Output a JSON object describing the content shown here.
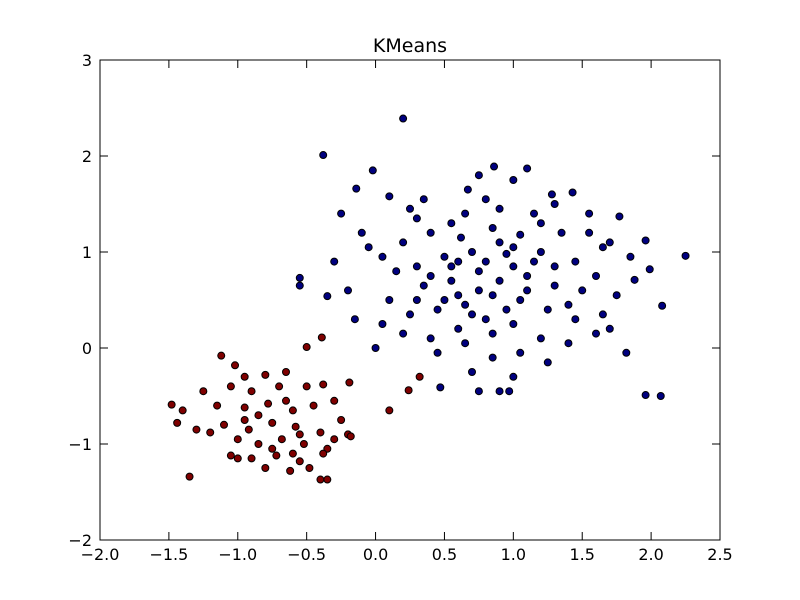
{
  "chart_data": {
    "type": "scatter",
    "title": "KMeans",
    "xlim": [
      -2,
      2.5
    ],
    "xticks": [
      {
        "value": -2,
        "label": "−2.0"
      },
      {
        "value": -1.5,
        "label": "−1.5"
      },
      {
        "value": -1,
        "label": "−1.0"
      },
      {
        "value": -0.5,
        "label": "−0.5"
      },
      {
        "value": 0,
        "label": "0.0"
      },
      0.5,
      {
        "value": 1,
        "label": "1.0"
      },
      1.5,
      {
        "value": 2,
        "label": "2.0"
      },
      2.5
    ],
    "ylim": [
      -2,
      3
    ],
    "yticks": [
      {
        "value": -2,
        "label": "−2"
      },
      {
        "value": -1,
        "label": "−1"
      },
      0,
      1,
      2,
      3
    ],
    "series": [
      {
        "color": "#00007f",
        "x": [
          0.2,
          -0.38,
          2.25,
          2.08,
          2.07,
          1.96,
          1.82,
          -0.55,
          -0.55,
          -0.35,
          0.47,
          0.86,
          1.1,
          -0.02,
          0.75,
          1.0,
          0.67,
          -0.14,
          1.43,
          1.77,
          1.96,
          1.99,
          1.88,
          0.1,
          0.35,
          0.8,
          1.28,
          1.3,
          -0.25,
          0.3,
          0.55,
          0.9,
          1.15,
          1.55,
          -0.1,
          0.2,
          0.4,
          0.62,
          0.85,
          1.05,
          1.35,
          1.65,
          1.7,
          -0.3,
          0.05,
          0.3,
          0.5,
          0.7,
          0.95,
          1.2,
          1.45,
          1.6,
          1.75,
          -0.2,
          0.1,
          0.35,
          0.55,
          0.75,
          0.9,
          1.1,
          1.3,
          1.5,
          1.65,
          -0.15,
          0.05,
          0.25,
          0.45,
          0.65,
          0.85,
          1.05,
          1.25,
          1.45,
          1.7,
          0.0,
          0.2,
          0.4,
          0.6,
          0.8,
          1.0,
          1.2,
          1.4,
          1.6,
          0.45,
          0.65,
          0.85,
          1.05,
          1.25,
          0.7,
          0.9,
          0.97,
          1.0,
          0.75,
          0.55,
          0.75,
          0.95,
          0.6,
          0.8,
          1.0,
          1.15,
          0.5,
          0.7,
          0.9,
          1.1,
          1.3,
          0.4,
          0.15,
          1.55,
          1.85,
          -0.05,
          0.25,
          0.65,
          1.2,
          1.4,
          0.3,
          1.0,
          0.85,
          0.6
        ],
        "y": [
          2.39,
          2.01,
          0.96,
          0.44,
          -0.5,
          -0.49,
          -0.05,
          0.73,
          0.65,
          0.54,
          -0.41,
          1.89,
          1.87,
          1.85,
          1.8,
          1.75,
          1.65,
          1.66,
          1.62,
          1.37,
          1.12,
          0.82,
          0.71,
          1.58,
          1.55,
          1.55,
          1.6,
          1.5,
          1.4,
          1.35,
          1.3,
          1.45,
          1.4,
          1.4,
          1.2,
          1.1,
          1.2,
          1.15,
          1.25,
          1.18,
          1.2,
          1.05,
          1.1,
          0.9,
          0.95,
          0.85,
          0.95,
          1.0,
          0.98,
          1.0,
          0.9,
          0.75,
          0.55,
          0.6,
          0.5,
          0.65,
          0.7,
          0.8,
          0.7,
          0.75,
          0.65,
          0.6,
          0.35,
          0.3,
          0.25,
          0.35,
          0.4,
          0.45,
          0.55,
          0.5,
          0.4,
          0.3,
          0.2,
          0.0,
          0.15,
          0.1,
          0.2,
          0.3,
          0.25,
          0.1,
          0.05,
          0.15,
          -0.05,
          0.05,
          -0.1,
          -0.05,
          -0.15,
          -0.25,
          -0.45,
          -0.45,
          -0.3,
          -0.45,
          0.85,
          0.6,
          0.4,
          0.55,
          0.9,
          0.85,
          0.9,
          0.5,
          0.35,
          1.1,
          0.6,
          0.85,
          0.75,
          0.8,
          1.2,
          0.95,
          1.05,
          1.45,
          1.4,
          1.3,
          0.45,
          0.5,
          1.05,
          0.15,
          0.9
        ]
      },
      {
        "color": "#7f0000",
        "x": [
          -1.12,
          -0.39,
          -0.5,
          -1.35,
          -1.48,
          0.1,
          0.24,
          0.32,
          -0.19,
          -0.4,
          -0.35,
          -1.44,
          -0.2,
          -1.02,
          -0.95,
          -0.8,
          -0.65,
          -0.38,
          -1.25,
          -1.05,
          -0.9,
          -0.7,
          -0.5,
          -0.3,
          -1.4,
          -1.15,
          -0.95,
          -0.78,
          -0.6,
          -0.45,
          -0.25,
          -1.3,
          -1.1,
          -0.92,
          -0.75,
          -0.58,
          -0.4,
          -1.2,
          -1.0,
          -0.85,
          -0.68,
          -0.52,
          -0.35,
          -1.05,
          -0.9,
          -0.72,
          -0.55,
          -0.38,
          -0.8,
          -0.62,
          -0.48,
          -1.0,
          -0.85,
          -0.65,
          -0.55,
          -0.75,
          -0.95,
          -0.3,
          -0.18,
          -0.6
        ],
        "y": [
          -0.08,
          0.11,
          0.01,
          -1.34,
          -0.59,
          -0.65,
          -0.44,
          -0.3,
          -0.36,
          -1.37,
          -1.37,
          -0.78,
          -0.9,
          -0.18,
          -0.3,
          -0.28,
          -0.25,
          -0.38,
          -0.45,
          -0.4,
          -0.45,
          -0.4,
          -0.4,
          -0.55,
          -0.65,
          -0.6,
          -0.62,
          -0.58,
          -0.65,
          -0.6,
          -0.75,
          -0.85,
          -0.8,
          -0.85,
          -0.78,
          -0.82,
          -0.88,
          -0.88,
          -0.95,
          -1.0,
          -0.95,
          -1.0,
          -1.05,
          -1.12,
          -1.15,
          -1.12,
          -1.18,
          -1.1,
          -1.25,
          -1.28,
          -1.25,
          -1.15,
          -0.7,
          -0.55,
          -0.9,
          -1.05,
          -0.75,
          -0.95,
          -0.92,
          -1.1
        ]
      }
    ]
  }
}
